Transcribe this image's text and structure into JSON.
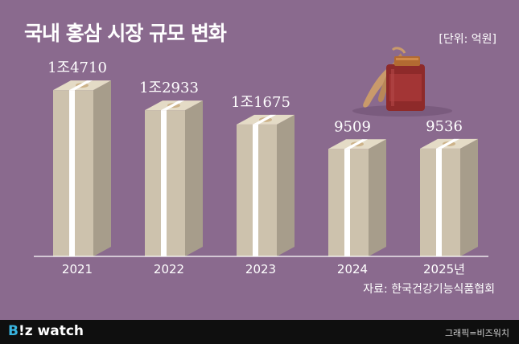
{
  "header": {
    "title": "국내 홍삼 시장 규모 변화",
    "unit": "[단위: 억원]"
  },
  "source": "자료: 한국건강기능식품협회",
  "footer": {
    "brand_prefix": "B",
    "brand_rest": "!z watch",
    "credit": "그래픽=비즈워치"
  },
  "colors": {
    "background": "#8a6a8e",
    "bundle_front": "#cdc2ad",
    "bundle_side": "#a79d8b",
    "bundle_top": "#e4dbc6",
    "band": "#ffffff",
    "footer_bg": "#0f0f0f",
    "brand_accent": "#39b5e0"
  },
  "chart_data": {
    "type": "bar",
    "title": "국내 홍삼 시장 규모 변화",
    "unit": "억원",
    "categories": [
      "2021",
      "2022",
      "2023",
      "2024",
      "2025년"
    ],
    "values": [
      14710,
      12933,
      11675,
      9509,
      9536
    ],
    "value_labels": [
      "1조4710",
      "1조2933",
      "1조1675",
      "9509",
      "9536"
    ],
    "ylim": [
      0,
      16000
    ],
    "grid": false,
    "bar_style": "stacked money bundles"
  }
}
